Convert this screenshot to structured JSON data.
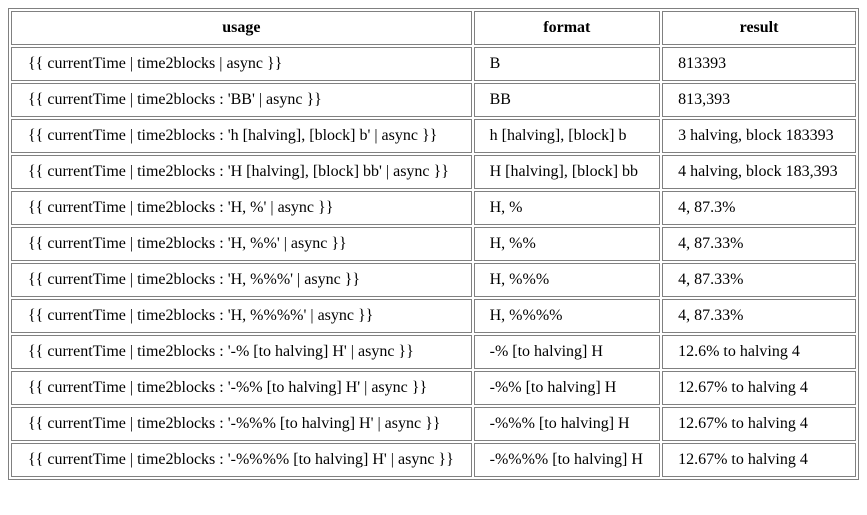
{
  "table": {
    "headers": {
      "usage": "usage",
      "format": "format",
      "result": "result"
    },
    "rows": [
      {
        "usage": "{{ currentTime | time2blocks | async }}",
        "format": "B",
        "result": "813393"
      },
      {
        "usage": "{{ currentTime | time2blocks : 'BB' | async }}",
        "format": "BB",
        "result": "813,393"
      },
      {
        "usage": "{{ currentTime | time2blocks : 'h [halving], [block] b' | async }}",
        "format": "h [halving], [block] b",
        "result": "3 halving, block 183393"
      },
      {
        "usage": "{{ currentTime | time2blocks : 'H [halving], [block] bb' | async }}",
        "format": "H [halving], [block] bb",
        "result": "4 halving, block 183,393"
      },
      {
        "usage": "{{ currentTime | time2blocks : 'H, %' | async }}",
        "format": "H, %",
        "result": "4, 87.3%"
      },
      {
        "usage": "{{ currentTime | time2blocks : 'H, %%' | async }}",
        "format": "H, %%",
        "result": "4, 87.33%"
      },
      {
        "usage": "{{ currentTime | time2blocks : 'H, %%%' | async }}",
        "format": "H, %%%",
        "result": "4, 87.33%"
      },
      {
        "usage": "{{ currentTime | time2blocks : 'H, %%%%' | async }}",
        "format": "H, %%%%",
        "result": "4, 87.33%"
      },
      {
        "usage": "{{ currentTime | time2blocks : '-% [to halving] H' | async }}",
        "format": "-% [to halving] H",
        "result": "12.6% to halving 4"
      },
      {
        "usage": "{{ currentTime | time2blocks : '-%% [to halving] H' | async }}",
        "format": "-%% [to halving] H",
        "result": "12.67% to halving 4"
      },
      {
        "usage": "{{ currentTime | time2blocks : '-%%% [to halving] H' | async }}",
        "format": "-%%% [to halving] H",
        "result": "12.67% to halving 4"
      },
      {
        "usage": "{{ currentTime | time2blocks : '-%%%% [to halving] H' | async }}",
        "format": "-%%%% [to halving] H",
        "result": "12.67% to halving 4"
      }
    ]
  }
}
